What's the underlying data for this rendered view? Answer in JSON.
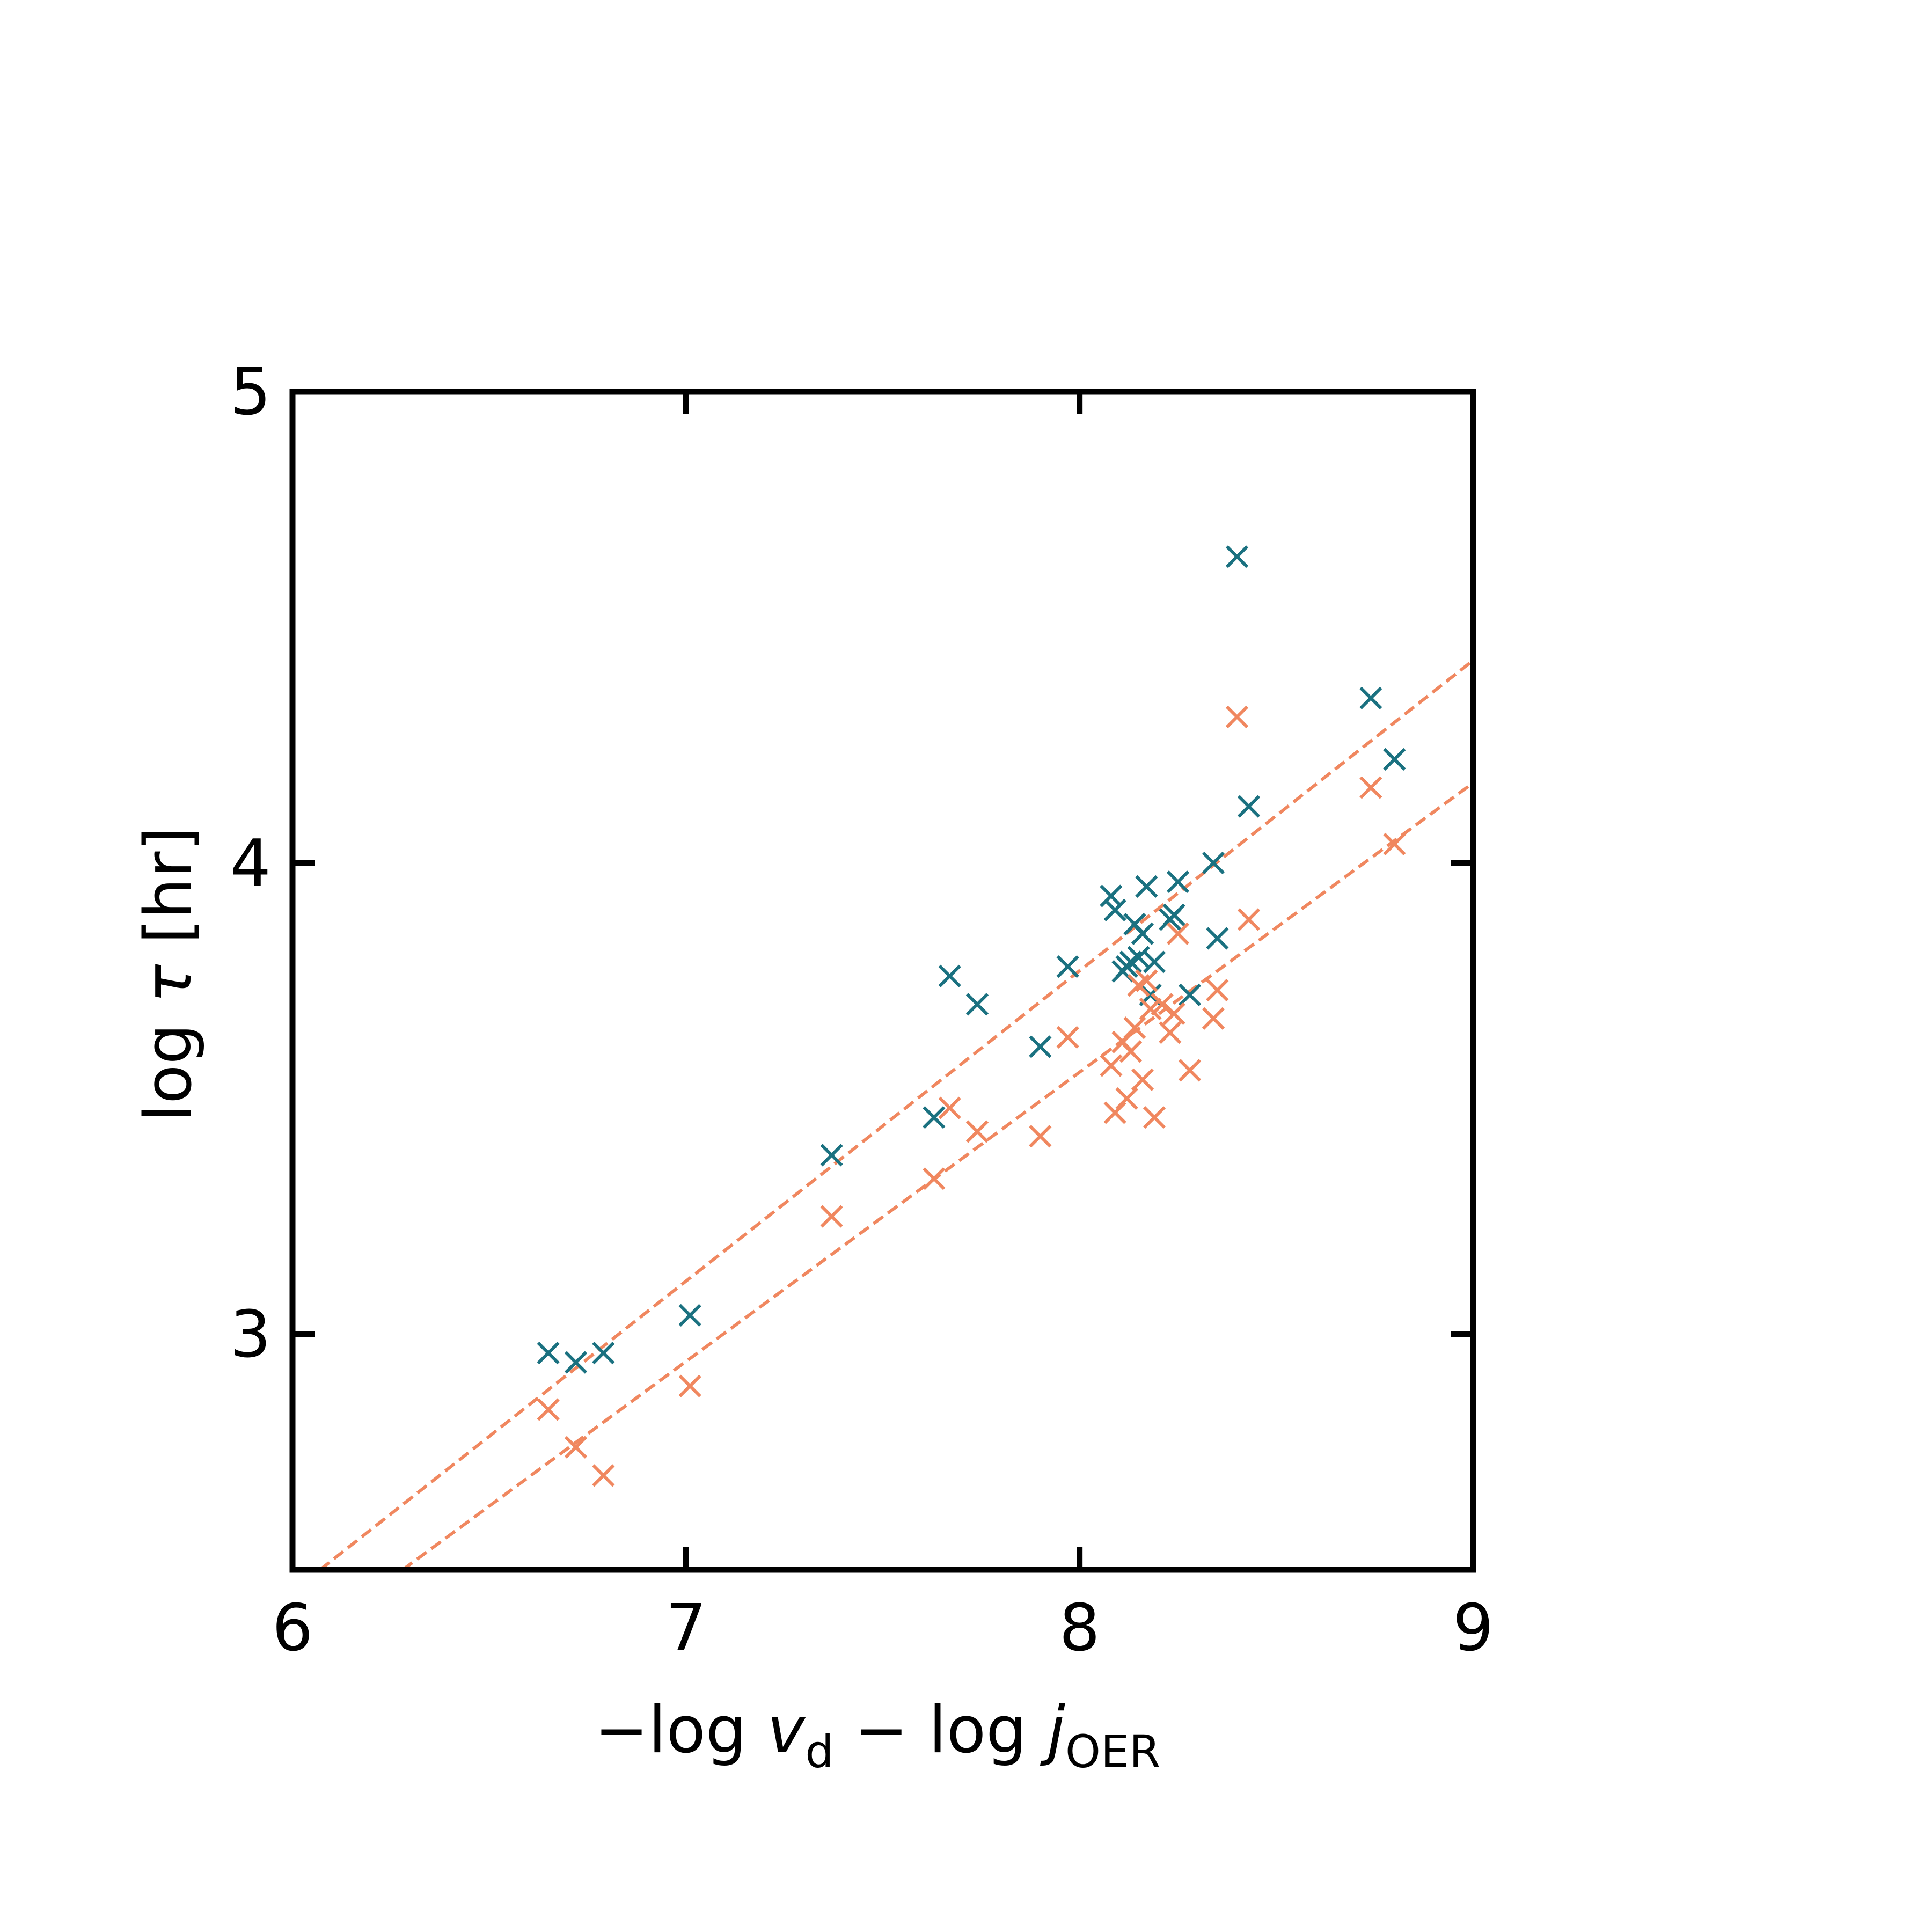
{
  "chart_data": {
    "type": "scatter",
    "title": "",
    "xlabel": {
      "prefix": "−log ",
      "v_symbol": "v",
      "v_subscript": "d",
      "middle": " − log ",
      "j_symbol": "j",
      "j_subscript": "OER"
    },
    "ylabel": {
      "prefix": "log ",
      "tau_symbol": "τ",
      "unit": " [hr]"
    },
    "xlim": [
      6,
      9
    ],
    "ylim": [
      2.5,
      5
    ],
    "xticks": [
      6,
      7,
      8,
      9
    ],
    "yticks": [
      3,
      4,
      5
    ],
    "grid": false,
    "colors": {
      "teal": "#1a7180",
      "orange": "#f0875f"
    },
    "series": [
      {
        "marker": "x",
        "color": "#1a7180",
        "points": [
          [
            6.65,
            2.96
          ],
          [
            6.72,
            2.94
          ],
          [
            6.79,
            2.96
          ],
          [
            7.01,
            3.04
          ],
          [
            7.37,
            3.38
          ],
          [
            7.63,
            3.46
          ],
          [
            7.67,
            3.76
          ],
          [
            7.74,
            3.7
          ],
          [
            7.9,
            3.61
          ],
          [
            7.97,
            3.78
          ],
          [
            8.08,
            3.93
          ],
          [
            8.09,
            3.9
          ],
          [
            8.11,
            3.77
          ],
          [
            8.12,
            3.78
          ],
          [
            8.13,
            3.79
          ],
          [
            8.14,
            3.87
          ],
          [
            8.15,
            3.8
          ],
          [
            8.16,
            3.85
          ],
          [
            8.17,
            3.95
          ],
          [
            8.18,
            3.72
          ],
          [
            8.19,
            3.79
          ],
          [
            8.23,
            3.88
          ],
          [
            8.24,
            3.89
          ],
          [
            8.25,
            3.96
          ],
          [
            8.28,
            3.72
          ],
          [
            8.34,
            4.0
          ],
          [
            8.35,
            3.84
          ],
          [
            8.4,
            4.65
          ],
          [
            8.43,
            4.12
          ],
          [
            8.74,
            4.35
          ],
          [
            8.8,
            4.22
          ]
        ]
      },
      {
        "marker": "x",
        "color": "#f0875f",
        "points": [
          [
            6.65,
            2.84
          ],
          [
            6.72,
            2.76
          ],
          [
            6.79,
            2.7
          ],
          [
            7.01,
            2.89
          ],
          [
            7.37,
            3.25
          ],
          [
            7.63,
            3.33
          ],
          [
            7.67,
            3.48
          ],
          [
            7.74,
            3.43
          ],
          [
            7.9,
            3.42
          ],
          [
            7.97,
            3.63
          ],
          [
            8.08,
            3.57
          ],
          [
            8.09,
            3.47
          ],
          [
            8.11,
            3.62
          ],
          [
            8.12,
            3.5
          ],
          [
            8.13,
            3.6
          ],
          [
            8.14,
            3.65
          ],
          [
            8.15,
            3.74
          ],
          [
            8.16,
            3.54
          ],
          [
            8.17,
            3.75
          ],
          [
            8.18,
            3.69
          ],
          [
            8.19,
            3.46
          ],
          [
            8.21,
            3.7
          ],
          [
            8.23,
            3.64
          ],
          [
            8.24,
            3.68
          ],
          [
            8.25,
            3.85
          ],
          [
            8.28,
            3.56
          ],
          [
            8.34,
            3.67
          ],
          [
            8.35,
            3.73
          ],
          [
            8.4,
            4.31
          ],
          [
            8.43,
            3.88
          ],
          [
            8.74,
            4.16
          ],
          [
            8.8,
            4.04
          ]
        ]
      }
    ],
    "fit_lines": [
      {
        "color": "#f0875f",
        "style": "dashed",
        "x": [
          6.07,
          9.0
        ],
        "y": [
          2.5,
          4.43
        ]
      },
      {
        "color": "#f0875f",
        "style": "dashed",
        "x": [
          6.28,
          9.0
        ],
        "y": [
          2.5,
          4.17
        ]
      }
    ]
  }
}
